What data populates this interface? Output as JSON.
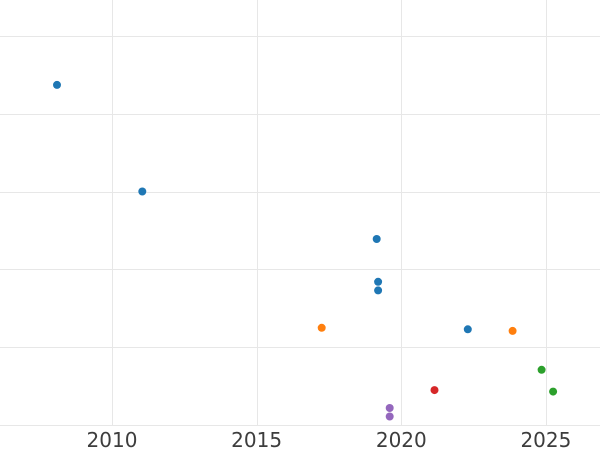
{
  "chart_data": {
    "type": "scatter",
    "title": "",
    "xlabel": "",
    "ylabel": "",
    "x_ticks": [
      2010,
      2015,
      2020,
      2025
    ],
    "x_tick_labels": [
      "2010",
      "2015",
      "2020",
      "2025"
    ],
    "x_range": [
      2006.13,
      2026.87
    ],
    "y_range": [
      -0.32,
      5.46
    ],
    "y_gridlines": [
      0,
      1,
      2,
      3,
      4,
      5
    ],
    "y_unit": "gridline-index (no y tick labels visible in image)",
    "grid": true,
    "legend": false,
    "marker_radius_px": 4,
    "colors": {
      "background": "#ffffff",
      "gridline": "#e7e7e7",
      "tick_label": "#3d3d3d"
    },
    "series": [
      {
        "name": "series-blue",
        "color": "#1f77b4",
        "points": [
          [
            2008.1,
            4.37
          ],
          [
            2011.05,
            3.0
          ],
          [
            2019.15,
            2.39
          ],
          [
            2019.2,
            1.84
          ],
          [
            2019.2,
            1.73
          ],
          [
            2022.3,
            1.23
          ]
        ]
      },
      {
        "name": "series-orange",
        "color": "#ff7f0e",
        "points": [
          [
            2017.25,
            1.25
          ],
          [
            2023.85,
            1.21
          ]
        ]
      },
      {
        "name": "series-green",
        "color": "#2ca02c",
        "points": [
          [
            2024.85,
            0.71
          ],
          [
            2025.25,
            0.43
          ]
        ]
      },
      {
        "name": "series-red",
        "color": "#d62728",
        "points": [
          [
            2021.15,
            0.45
          ]
        ]
      },
      {
        "name": "series-purple",
        "color": "#9467bd",
        "points": [
          [
            2019.6,
            0.22
          ],
          [
            2019.6,
            0.11
          ]
        ]
      }
    ]
  }
}
